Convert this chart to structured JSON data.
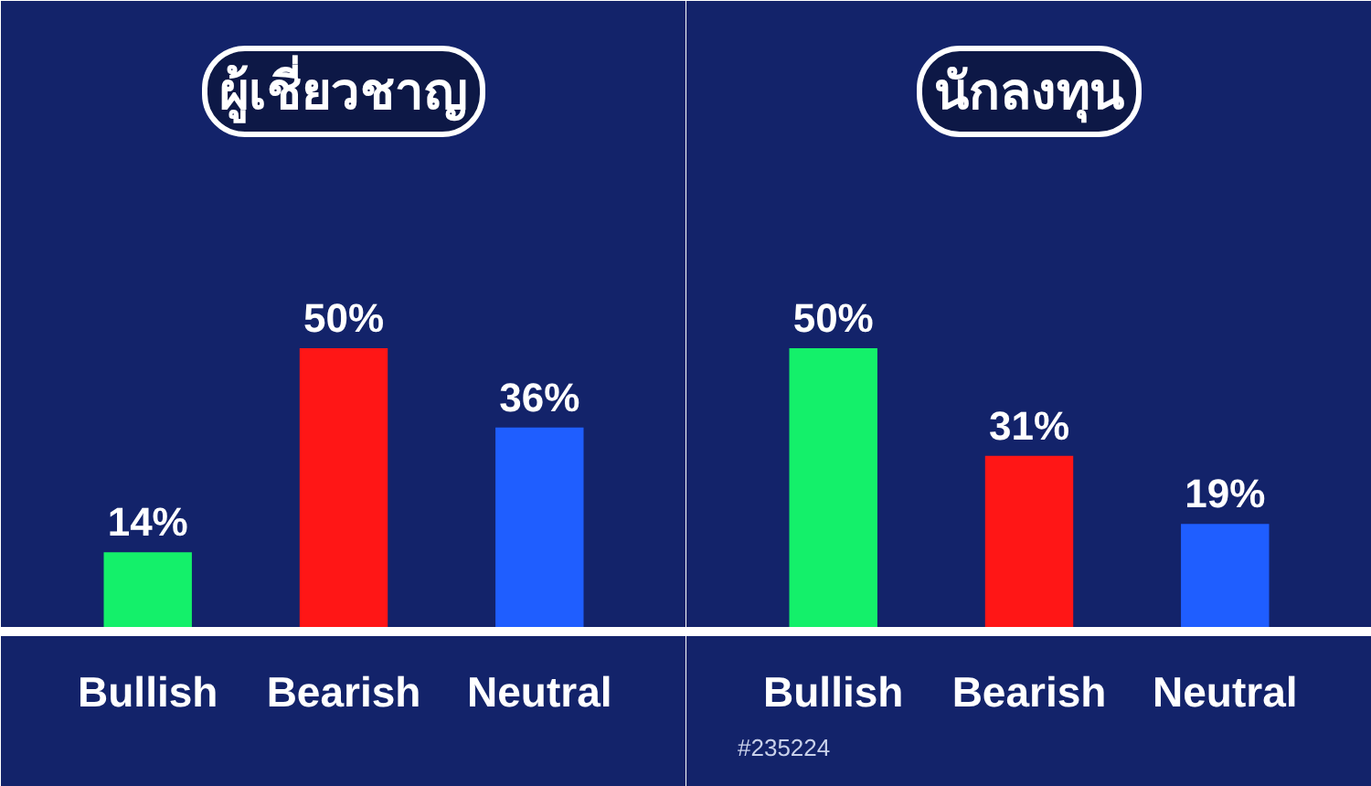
{
  "chart_data": [
    {
      "type": "bar",
      "title": "ผู้เชี่ยวชาญ",
      "categories": [
        "Bullish",
        "Bearish",
        "Neutral"
      ],
      "values": [
        14,
        50,
        36
      ],
      "colors": [
        "#14f06a",
        "#ff1616",
        "#1f5eff"
      ],
      "value_labels": [
        "14%",
        "50%",
        "36%"
      ]
    },
    {
      "type": "bar",
      "title": "นักลงทุน",
      "categories": [
        "Bullish",
        "Bearish",
        "Neutral"
      ],
      "values": [
        50,
        31,
        19
      ],
      "colors": [
        "#14f06a",
        "#ff1616",
        "#1f5eff"
      ],
      "value_labels": [
        "50%",
        "31%",
        "19%"
      ],
      "annotations": [
        "#235224"
      ]
    }
  ]
}
